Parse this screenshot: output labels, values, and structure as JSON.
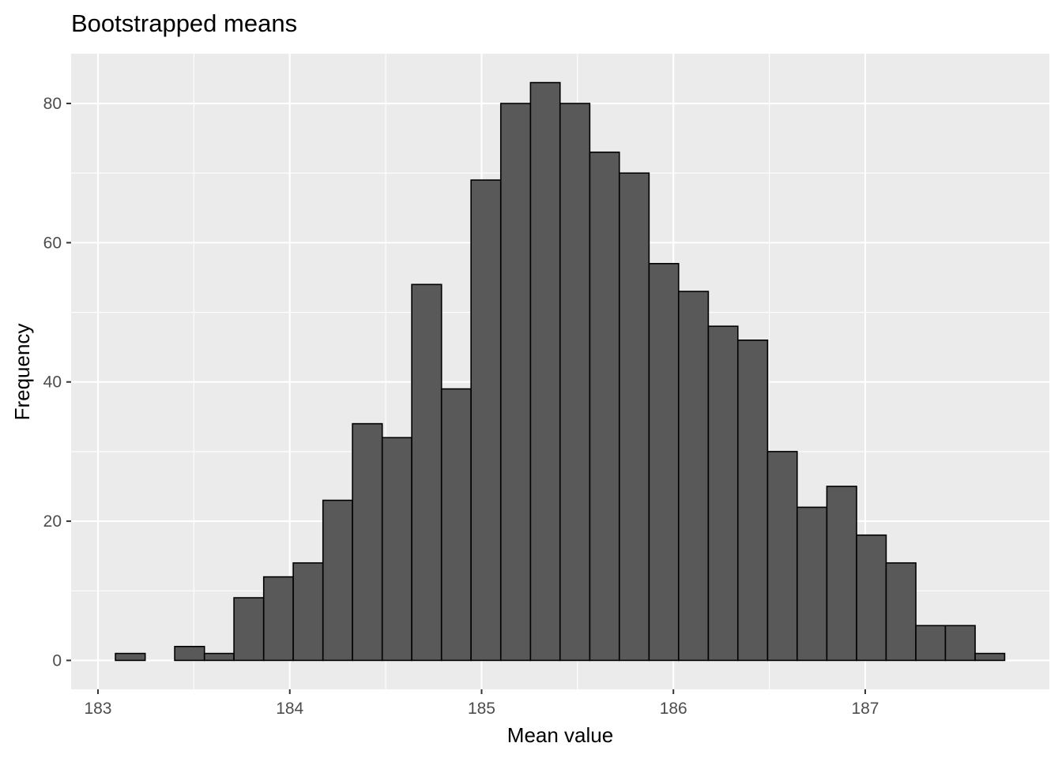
{
  "chart_data": {
    "type": "bar",
    "subtype": "histogram",
    "title": "Bootstrapped means",
    "xlabel": "Mean value",
    "ylabel": "Frequency",
    "bin_width": 0.1545,
    "bins": [
      {
        "start": 183.091,
        "end": 183.246,
        "count": 1
      },
      {
        "start": 183.246,
        "end": 183.4,
        "count": 0
      },
      {
        "start": 183.4,
        "end": 183.555,
        "count": 2
      },
      {
        "start": 183.555,
        "end": 183.709,
        "count": 1
      },
      {
        "start": 183.709,
        "end": 183.864,
        "count": 9
      },
      {
        "start": 183.864,
        "end": 184.018,
        "count": 12
      },
      {
        "start": 184.018,
        "end": 184.173,
        "count": 14
      },
      {
        "start": 184.173,
        "end": 184.327,
        "count": 23
      },
      {
        "start": 184.327,
        "end": 184.482,
        "count": 34
      },
      {
        "start": 184.482,
        "end": 184.636,
        "count": 32
      },
      {
        "start": 184.636,
        "end": 184.791,
        "count": 54
      },
      {
        "start": 184.791,
        "end": 184.945,
        "count": 39
      },
      {
        "start": 184.945,
        "end": 185.1,
        "count": 69
      },
      {
        "start": 185.1,
        "end": 185.255,
        "count": 80
      },
      {
        "start": 185.255,
        "end": 185.409,
        "count": 83
      },
      {
        "start": 185.409,
        "end": 185.564,
        "count": 80
      },
      {
        "start": 185.564,
        "end": 185.718,
        "count": 73
      },
      {
        "start": 185.718,
        "end": 185.873,
        "count": 70
      },
      {
        "start": 185.873,
        "end": 186.027,
        "count": 57
      },
      {
        "start": 186.027,
        "end": 186.182,
        "count": 53
      },
      {
        "start": 186.182,
        "end": 186.336,
        "count": 48
      },
      {
        "start": 186.336,
        "end": 186.491,
        "count": 46
      },
      {
        "start": 186.491,
        "end": 186.645,
        "count": 30
      },
      {
        "start": 186.645,
        "end": 186.8,
        "count": 22
      },
      {
        "start": 186.8,
        "end": 186.955,
        "count": 25
      },
      {
        "start": 186.955,
        "end": 187.109,
        "count": 18
      },
      {
        "start": 187.109,
        "end": 187.264,
        "count": 14
      },
      {
        "start": 187.264,
        "end": 187.418,
        "count": 5
      },
      {
        "start": 187.418,
        "end": 187.573,
        "count": 5
      },
      {
        "start": 187.573,
        "end": 187.727,
        "count": 1
      }
    ],
    "xlim": [
      182.86,
      187.96
    ],
    "ylim": [
      -4.15,
      87.15
    ],
    "xticks": [
      183,
      184,
      185,
      186,
      187
    ],
    "yticks": [
      0,
      20,
      40,
      60,
      80
    ],
    "grid": true,
    "colors": {
      "bar_fill": "#595959",
      "bar_stroke": "#000000",
      "panel_bg": "#ebebeb",
      "grid": "#ffffff",
      "tick_text": "#4d4d4d"
    }
  }
}
